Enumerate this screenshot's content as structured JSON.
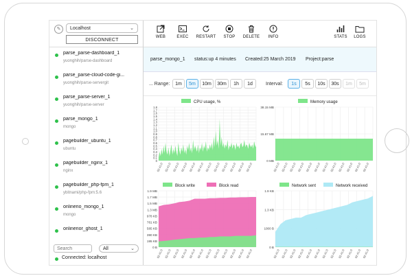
{
  "sidebar": {
    "host": "Localhost",
    "disconnect_label": "DISCONNECT",
    "containers": [
      {
        "name": "parse_parse-dashboard_1",
        "image": "yuonghih/parse-dashboard"
      },
      {
        "name": "parse_parse-cloud-code-gi...",
        "image": "yuonghih/parse-servergit"
      },
      {
        "name": "parse_parse-server_1",
        "image": "yuonghih/parse-server"
      },
      {
        "name": "parse_mongo_1",
        "image": "mongo"
      },
      {
        "name": "pagebuilder_ubuntu_1",
        "image": "ubuntu"
      },
      {
        "name": "pagebuilder_nginx_1",
        "image": "nginx"
      },
      {
        "name": "pagebuilder_php-fpm_1",
        "image": "ybitnami/php-fpm:5.6"
      },
      {
        "name": "onlinerio_mongo_1",
        "image": "mongo"
      },
      {
        "name": "onlinerior_ghost_1",
        "image": ""
      }
    ],
    "search_placeholder": "Search",
    "filter_value": "All",
    "connection_status": "Connected: localhost"
  },
  "toolbar": {
    "web": "WEB",
    "exec": "EXEC",
    "restart": "RESTART",
    "stop": "STOP",
    "delete": "DELETE",
    "info": "INFO",
    "stats": "STATS",
    "logs": "LOGS"
  },
  "info": {
    "name": "parse_mongo_1",
    "status": "status:up 4 minutes",
    "created": "Created:25 March 2019",
    "project": "Project:parse"
  },
  "controls": {
    "range_label": "... Range:",
    "range_options": [
      "1m",
      "5m",
      "10m",
      "30m",
      "1h",
      "1d"
    ],
    "range_selected": "5m",
    "interval_label": "Interval:",
    "interval_options": [
      "1s",
      "5s",
      "10s",
      "30s",
      "1m",
      "5m"
    ],
    "interval_selected": "1s",
    "interval_disabled": [
      "1m",
      "5m"
    ]
  },
  "colors": {
    "green": "#7ee58a",
    "pink": "#ee6fb6",
    "light_blue": "#aee9f5",
    "active": "#2a8fd0"
  },
  "tick_label": "02:41:0",
  "chart_data": [
    {
      "type": "area",
      "legend": [
        "CPU usage, %"
      ],
      "y_ticks": [
        "1.8",
        "1.7",
        "1.6",
        "1.5",
        "1.4",
        "1.3",
        "1.2",
        "1.1",
        "1.0",
        "0.9",
        "0.8",
        "0.7",
        "0.6",
        "0.5",
        "0.4",
        "0.3",
        "0.2",
        "0.1",
        "0"
      ],
      "ylim": [
        0,
        1.8
      ],
      "series": [
        {
          "name": "CPU usage, %",
          "values": [
            0.1,
            0.3,
            0.15,
            0.4,
            0.2,
            0.5,
            0.25,
            0.6,
            0.3,
            0.2,
            0.45,
            0.15,
            0.35,
            0.55,
            0.2,
            0.4,
            0.25,
            0.5,
            0.3,
            0.15,
            0.6,
            0.35,
            0.2,
            0.45,
            0.3,
            0.55,
            0.25,
            0.4,
            0.2,
            0.5,
            0.35,
            0.6,
            0.3,
            0.45,
            0.25,
            0.7,
            0.35,
            0.5,
            0.4,
            0.3,
            0.55,
            0.25,
            0.45,
            0.35,
            0.6,
            0.3,
            0.5,
            0.4,
            0.65,
            0.3,
            0.45,
            0.35,
            0.55,
            0.4,
            0.6,
            0.35,
            0.8,
            0.45,
            1.0,
            0.5,
            0.7,
            0.4,
            1.4,
            0.5,
            0.8,
            0.45,
            0.6,
            0.4,
            0.55,
            0.45,
            0.7,
            0.35,
            0.5,
            0.45,
            0.6,
            0.4,
            0.55,
            0.5,
            0.35,
            0.6,
            0.45,
            0.5,
            0.4,
            0.55,
            0.6,
            0.45,
            0.5,
            0.7,
            0.45,
            0.55,
            0.5,
            0.4,
            0.6,
            0.5,
            0.45,
            0.55,
            0.4,
            0.65,
            0.5,
            0.45
          ]
        }
      ]
    },
    {
      "type": "area",
      "legend": [
        "Memory usage"
      ],
      "y_ticks": [
        "38.15 MB",
        "15.67 MB",
        "0 MB"
      ],
      "ylim": [
        0,
        38.15
      ],
      "series": [
        {
          "name": "Memory usage",
          "values": [
            15.67,
            15.67,
            15.67,
            15.67,
            15.67,
            15.67,
            15.67,
            15.67,
            15.67,
            15.67,
            15.67,
            15.67,
            15.67,
            15.67,
            15.67,
            15.67,
            15.67,
            15.67,
            15.67,
            15.67
          ]
        }
      ]
    },
    {
      "type": "area",
      "legend": [
        "Block write",
        "Block read"
      ],
      "y_ticks": [
        "1.9 MB",
        "1.7 MB",
        "1.5 MB",
        "1.3 MB",
        "978 KB",
        "781 KB",
        "585 KB",
        "390 KB",
        "195 KB",
        "0 B"
      ],
      "ylim": [
        0,
        2.0
      ],
      "series": [
        {
          "name": "Block write",
          "values": [
            0.2,
            0.22,
            0.24,
            0.26,
            0.28,
            0.3,
            0.32,
            0.32,
            0.34,
            0.34,
            0.36,
            0.36,
            0.38,
            0.38,
            0.38,
            0.4,
            0.4,
            0.4,
            0.4,
            0.42
          ]
        },
        {
          "name": "Block read",
          "values": [
            1.45,
            1.5,
            1.52,
            1.55,
            1.6,
            1.62,
            1.65,
            1.72,
            1.72,
            1.72,
            1.74,
            1.74,
            1.75,
            1.75,
            1.76,
            1.76,
            1.77,
            1.77,
            1.78,
            1.78
          ]
        }
      ]
    },
    {
      "type": "area",
      "legend": [
        "Network sent",
        "Network received"
      ],
      "y_ticks": [
        "1.9 KB",
        "1.3 KB",
        "1000 B",
        "0 B"
      ],
      "ylim": [
        0,
        2200
      ],
      "series": [
        {
          "name": "Network sent",
          "values": [
            10,
            10,
            10,
            10,
            10,
            10,
            10,
            10,
            10,
            10,
            10,
            10,
            10,
            10,
            10,
            10,
            10,
            10,
            10,
            10
          ]
        },
        {
          "name": "Network received",
          "values": [
            600,
            900,
            1050,
            1100,
            1150,
            1150,
            1250,
            1300,
            1350,
            1400,
            1450,
            1500,
            1550,
            1600,
            1650,
            1750,
            1800,
            1850,
            1900,
            2000
          ]
        }
      ]
    }
  ]
}
